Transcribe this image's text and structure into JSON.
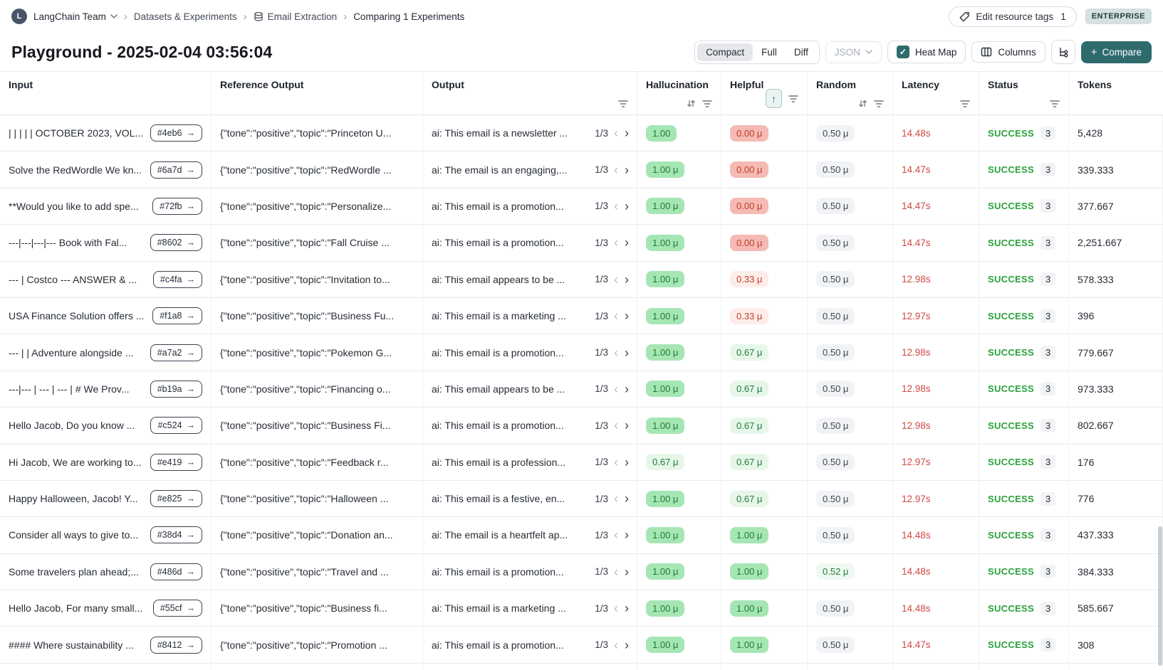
{
  "breadcrumb": {
    "team": "LangChain Team",
    "items": [
      "Datasets & Experiments",
      "Email Extraction",
      "Comparing 1 Experiments"
    ]
  },
  "header": {
    "title": "Playground - 2025-02-04 03:56:04"
  },
  "toolbar": {
    "edit_tags_label": "Edit resource tags",
    "edit_tags_count": "1",
    "plan_badge": "ENTERPRISE",
    "view_modes": [
      "Compact",
      "Full",
      "Diff"
    ],
    "active_view": "Compact",
    "format_select": "JSON",
    "heatmap_label": "Heat Map",
    "heatmap_checked": true,
    "columns_label": "Columns",
    "compare_label": "Compare"
  },
  "icons": {
    "arrow_right": "→",
    "chevron_left": "‹",
    "chevron_right": "›",
    "breadcrumb_separator": "›",
    "sort_asc": "↑",
    "check": "✓",
    "plus": "+",
    "avatar_letter": "L"
  },
  "colors": {
    "accent_teal": "#2e6b6d",
    "success_green": "#29a13a",
    "latency_red": "#cf4943",
    "pill_green_strong": "#a6e6b5",
    "pill_green_light": "#e6f7ea",
    "pill_red_strong": "#f4bab3",
    "pill_red_light": "#fdedea",
    "pill_gray": "#f1f3f6"
  },
  "table": {
    "columns": [
      {
        "label": "Input",
        "sort": "none",
        "filter": false
      },
      {
        "label": "Reference Output",
        "sort": "none",
        "filter": false
      },
      {
        "label": "Output",
        "sort": "none",
        "filter": true
      },
      {
        "label": "Hallucination",
        "sort": "both",
        "filter": true
      },
      {
        "label": "Helpful",
        "sort": "asc",
        "filter": true
      },
      {
        "label": "Random",
        "sort": "both",
        "filter": true
      },
      {
        "label": "Latency",
        "sort": "none",
        "filter": true
      },
      {
        "label": "Status",
        "sort": "none",
        "filter": true
      },
      {
        "label": "Tokens",
        "sort": "none",
        "filter": false
      }
    ],
    "rows": [
      {
        "input": "| | | | | OCTOBER 2023, VOL...",
        "tag": "#4eb6",
        "reference": "{\"tone\":\"positive\",\"topic\":\"Princeton U...",
        "output": "ai: This email is a newsletter ...",
        "page": "1/3",
        "hallucination": {
          "text": "1.00",
          "tone": "strong-green"
        },
        "helpful": {
          "text": "0.00 μ",
          "tone": "strong-red"
        },
        "random": {
          "text": "0.50 μ",
          "tone": "neutral"
        },
        "latency": "14.48s",
        "status": "SUCCESS",
        "runs": "3",
        "tokens": "5,428"
      },
      {
        "input": "Solve the RedWordle We kn...",
        "tag": "#6a7d",
        "reference": "{\"tone\":\"positive\",\"topic\":\"RedWordle ...",
        "output": "ai: The email is an engaging,...",
        "page": "1/3",
        "hallucination": {
          "text": "1.00 μ",
          "tone": "strong-green"
        },
        "helpful": {
          "text": "0.00 μ",
          "tone": "strong-red"
        },
        "random": {
          "text": "0.50 μ",
          "tone": "neutral"
        },
        "latency": "14.47s",
        "status": "SUCCESS",
        "runs": "3",
        "tokens": "339.333"
      },
      {
        "input": "**Would you like to add spe...",
        "tag": "#72fb",
        "reference": "{\"tone\":\"positive\",\"topic\":\"Personalize...",
        "output": "ai: This email is a promotion...",
        "page": "1/3",
        "hallucination": {
          "text": "1.00 μ",
          "tone": "strong-green"
        },
        "helpful": {
          "text": "0.00 μ",
          "tone": "strong-red"
        },
        "random": {
          "text": "0.50 μ",
          "tone": "neutral"
        },
        "latency": "14.47s",
        "status": "SUCCESS",
        "runs": "3",
        "tokens": "377.667"
      },
      {
        "input": "---|---|---|--- Book with Fal...",
        "tag": "#8602",
        "reference": "{\"tone\":\"positive\",\"topic\":\"Fall Cruise ...",
        "output": "ai: This email is a promotion...",
        "page": "1/3",
        "hallucination": {
          "text": "1.00 μ",
          "tone": "strong-green"
        },
        "helpful": {
          "text": "0.00 μ",
          "tone": "strong-red"
        },
        "random": {
          "text": "0.50 μ",
          "tone": "neutral"
        },
        "latency": "14.47s",
        "status": "SUCCESS",
        "runs": "3",
        "tokens": "2,251.667"
      },
      {
        "input": "--- | Costco --- ANSWER & ...",
        "tag": "#c4fa",
        "reference": "{\"tone\":\"positive\",\"topic\":\"Invitation to...",
        "output": "ai: This email appears to be ...",
        "page": "1/3",
        "hallucination": {
          "text": "1.00 μ",
          "tone": "strong-green"
        },
        "helpful": {
          "text": "0.33 μ",
          "tone": "light-red"
        },
        "random": {
          "text": "0.50 μ",
          "tone": "neutral"
        },
        "latency": "12.98s",
        "status": "SUCCESS",
        "runs": "3",
        "tokens": "578.333"
      },
      {
        "input": "USA Finance Solution offers ...",
        "tag": "#f1a8",
        "reference": "{\"tone\":\"positive\",\"topic\":\"Business Fu...",
        "output": "ai: This email is a marketing ...",
        "page": "1/3",
        "hallucination": {
          "text": "1.00 μ",
          "tone": "strong-green"
        },
        "helpful": {
          "text": "0.33 μ",
          "tone": "light-red"
        },
        "random": {
          "text": "0.50 μ",
          "tone": "neutral"
        },
        "latency": "12.97s",
        "status": "SUCCESS",
        "runs": "3",
        "tokens": "396"
      },
      {
        "input": "--- | | Adventure alongside ...",
        "tag": "#a7a2",
        "reference": "{\"tone\":\"positive\",\"topic\":\"Pokemon G...",
        "output": "ai: This email is a promotion...",
        "page": "1/3",
        "hallucination": {
          "text": "1.00 μ",
          "tone": "strong-green"
        },
        "helpful": {
          "text": "0.67 μ",
          "tone": "light-green"
        },
        "random": {
          "text": "0.50 μ",
          "tone": "neutral"
        },
        "latency": "12.98s",
        "status": "SUCCESS",
        "runs": "3",
        "tokens": "779.667"
      },
      {
        "input": "---|--- | --- | --- | # We Prov...",
        "tag": "#b19a",
        "reference": "{\"tone\":\"positive\",\"topic\":\"Financing o...",
        "output": "ai: This email appears to be ...",
        "page": "1/3",
        "hallucination": {
          "text": "1.00 μ",
          "tone": "strong-green"
        },
        "helpful": {
          "text": "0.67 μ",
          "tone": "light-green"
        },
        "random": {
          "text": "0.50 μ",
          "tone": "neutral"
        },
        "latency": "12.98s",
        "status": "SUCCESS",
        "runs": "3",
        "tokens": "973.333"
      },
      {
        "input": "Hello Jacob, Do you know ...",
        "tag": "#c524",
        "reference": "{\"tone\":\"positive\",\"topic\":\"Business Fi...",
        "output": "ai: This email is a promotion...",
        "page": "1/3",
        "hallucination": {
          "text": "1.00 μ",
          "tone": "strong-green"
        },
        "helpful": {
          "text": "0.67 μ",
          "tone": "light-green"
        },
        "random": {
          "text": "0.50 μ",
          "tone": "neutral"
        },
        "latency": "12.98s",
        "status": "SUCCESS",
        "runs": "3",
        "tokens": "802.667"
      },
      {
        "input": "Hi Jacob, We are working to...",
        "tag": "#e419",
        "reference": "{\"tone\":\"positive\",\"topic\":\"Feedback r...",
        "output": "ai: This email is a profession...",
        "page": "1/3",
        "hallucination": {
          "text": "0.67 μ",
          "tone": "light-green"
        },
        "helpful": {
          "text": "0.67 μ",
          "tone": "light-green"
        },
        "random": {
          "text": "0.50 μ",
          "tone": "neutral"
        },
        "latency": "12.97s",
        "status": "SUCCESS",
        "runs": "3",
        "tokens": "176"
      },
      {
        "input": "Happy Halloween, Jacob! Y...",
        "tag": "#e825",
        "reference": "{\"tone\":\"positive\",\"topic\":\"Halloween ...",
        "output": "ai: This email is a festive, en...",
        "page": "1/3",
        "hallucination": {
          "text": "1.00 μ",
          "tone": "strong-green"
        },
        "helpful": {
          "text": "0.67 μ",
          "tone": "light-green"
        },
        "random": {
          "text": "0.50 μ",
          "tone": "neutral"
        },
        "latency": "12.97s",
        "status": "SUCCESS",
        "runs": "3",
        "tokens": "776"
      },
      {
        "input": "Consider all ways to give to...",
        "tag": "#38d4",
        "reference": "{\"tone\":\"positive\",\"topic\":\"Donation an...",
        "output": "ai: The email is a heartfelt ap...",
        "page": "1/3",
        "hallucination": {
          "text": "1.00 μ",
          "tone": "strong-green"
        },
        "helpful": {
          "text": "1.00 μ",
          "tone": "strong-green"
        },
        "random": {
          "text": "0.50 μ",
          "tone": "neutral"
        },
        "latency": "14.48s",
        "status": "SUCCESS",
        "runs": "3",
        "tokens": "437.333"
      },
      {
        "input": "Some travelers plan ahead;...",
        "tag": "#486d",
        "reference": "{\"tone\":\"positive\",\"topic\":\"Travel and ...",
        "output": "ai: This email is a promotion...",
        "page": "1/3",
        "hallucination": {
          "text": "1.00 μ",
          "tone": "strong-green"
        },
        "helpful": {
          "text": "1.00 μ",
          "tone": "strong-green"
        },
        "random": {
          "text": "0.52 μ",
          "tone": "xlight-green"
        },
        "latency": "14.48s",
        "status": "SUCCESS",
        "runs": "3",
        "tokens": "384.333"
      },
      {
        "input": "Hello Jacob, For many small...",
        "tag": "#55cf",
        "reference": "{\"tone\":\"positive\",\"topic\":\"Business fi...",
        "output": "ai: This email is a marketing ...",
        "page": "1/3",
        "hallucination": {
          "text": "1.00 μ",
          "tone": "strong-green"
        },
        "helpful": {
          "text": "1.00 μ",
          "tone": "strong-green"
        },
        "random": {
          "text": "0.50 μ",
          "tone": "neutral"
        },
        "latency": "14.48s",
        "status": "SUCCESS",
        "runs": "3",
        "tokens": "585.667"
      },
      {
        "input": "#### Where sustainability ...",
        "tag": "#8412",
        "reference": "{\"tone\":\"positive\",\"topic\":\"Promotion ...",
        "output": "ai: This email is a promotion...",
        "page": "1/3",
        "hallucination": {
          "text": "1.00 μ",
          "tone": "strong-green"
        },
        "helpful": {
          "text": "1.00 μ",
          "tone": "strong-green"
        },
        "random": {
          "text": "0.50 μ",
          "tone": "neutral"
        },
        "latency": "14.47s",
        "status": "SUCCESS",
        "runs": "3",
        "tokens": "308"
      }
    ]
  }
}
